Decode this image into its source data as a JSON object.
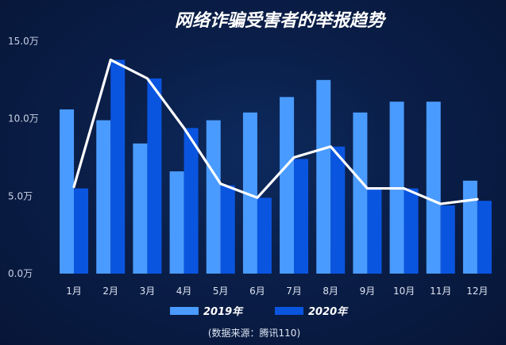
{
  "chart_data": {
    "type": "bar",
    "title": "网络诈骗受害者的举报趋势",
    "categories": [
      "1月",
      "2月",
      "3月",
      "4月",
      "5月",
      "6月",
      "7月",
      "8月",
      "9月",
      "10月",
      "11月",
      "12月"
    ],
    "ylim": [
      0,
      15
    ],
    "yticks": [
      0,
      5,
      10,
      15
    ],
    "ytick_labels": [
      "0.0万",
      "5.0万",
      "10.0万",
      "15.0万"
    ],
    "series": [
      {
        "name": "2019年",
        "color": "#4a9bff",
        "values": [
          10.6,
          9.9,
          8.4,
          6.6,
          9.9,
          10.4,
          11.4,
          12.5,
          10.4,
          11.1,
          11.1,
          6.0
        ]
      },
      {
        "name": "2020年",
        "color": "#0a55e0",
        "values": [
          5.5,
          13.8,
          12.6,
          9.4,
          5.7,
          4.9,
          7.4,
          8.2,
          5.5,
          5.5,
          4.4,
          4.7
        ]
      }
    ],
    "line": {
      "color": "#ffffff",
      "values": [
        5.6,
        13.8,
        12.6,
        9.4,
        5.8,
        4.9,
        7.5,
        8.2,
        5.5,
        5.5,
        4.5,
        4.8
      ]
    },
    "legend_position": "bottom",
    "source": "(数据来源：腾讯110)"
  }
}
